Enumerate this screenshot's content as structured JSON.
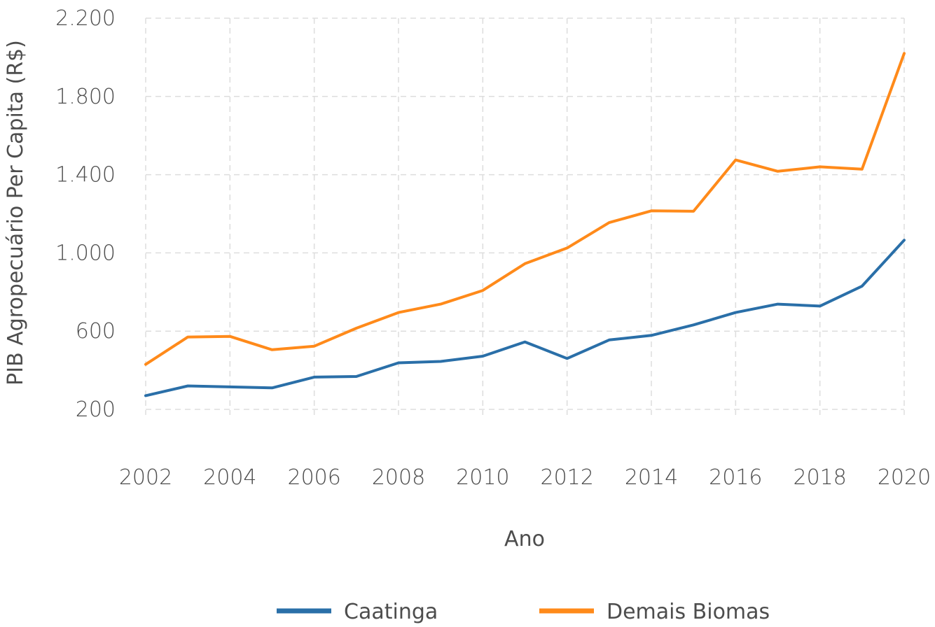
{
  "chart_data": {
    "type": "line",
    "title": "",
    "xlabel": "Ano",
    "ylabel": "PIB Agropecuário Per Capita (R$)",
    "x": [
      2002,
      2003,
      2004,
      2005,
      2006,
      2007,
      2008,
      2009,
      2010,
      2011,
      2012,
      2013,
      2014,
      2015,
      2016,
      2017,
      2018,
      2019,
      2020
    ],
    "xticks": [
      2002,
      2004,
      2006,
      2008,
      2010,
      2012,
      2014,
      2016,
      2018,
      2020
    ],
    "xtick_labels": [
      "2002",
      "2004",
      "2006",
      "2008",
      "2010",
      "2012",
      "2014",
      "2016",
      "2018",
      "2020"
    ],
    "xlim": [
      2002,
      2020
    ],
    "yticks": [
      200,
      600,
      1000,
      1400,
      1800,
      2200
    ],
    "ytick_labels": [
      "200",
      "600",
      "1.000",
      "1.400",
      "1.800",
      "2.200"
    ],
    "ylim": [
      200,
      2200
    ],
    "grid": true,
    "legend_position": "bottom-center",
    "series": [
      {
        "name": "Caatinga",
        "color": "#2a6fa8",
        "values": [
          270,
          320,
          315,
          310,
          365,
          368,
          438,
          445,
          472,
          545,
          460,
          555,
          578,
          632,
          695,
          738,
          728,
          830,
          1065
        ]
      },
      {
        "name": "Demais Biomas",
        "color": "#ff8a1a",
        "values": [
          430,
          570,
          573,
          505,
          523,
          615,
          695,
          738,
          808,
          945,
          1025,
          1155,
          1215,
          1213,
          1475,
          1417,
          1440,
          1428,
          2020
        ]
      }
    ]
  }
}
